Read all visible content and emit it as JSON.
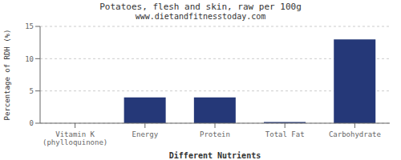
{
  "chart_data": {
    "type": "bar",
    "title": "Potatoes, flesh and skin, raw per 100g",
    "subtitle": "www.dietandfitnesstoday.com",
    "xlabel": "Different Nutrients",
    "ylabel": "Percentage of RDH (%)",
    "categories": [
      "Vitamin K (phylloquinone)",
      "Energy",
      "Protein",
      "Total Fat",
      "Carbohydrate"
    ],
    "values": [
      0,
      4,
      4,
      0.2,
      13
    ],
    "color": "#253878",
    "ylim": [
      0,
      15
    ],
    "yticks": [
      0,
      5,
      10,
      15
    ],
    "grid": true
  }
}
